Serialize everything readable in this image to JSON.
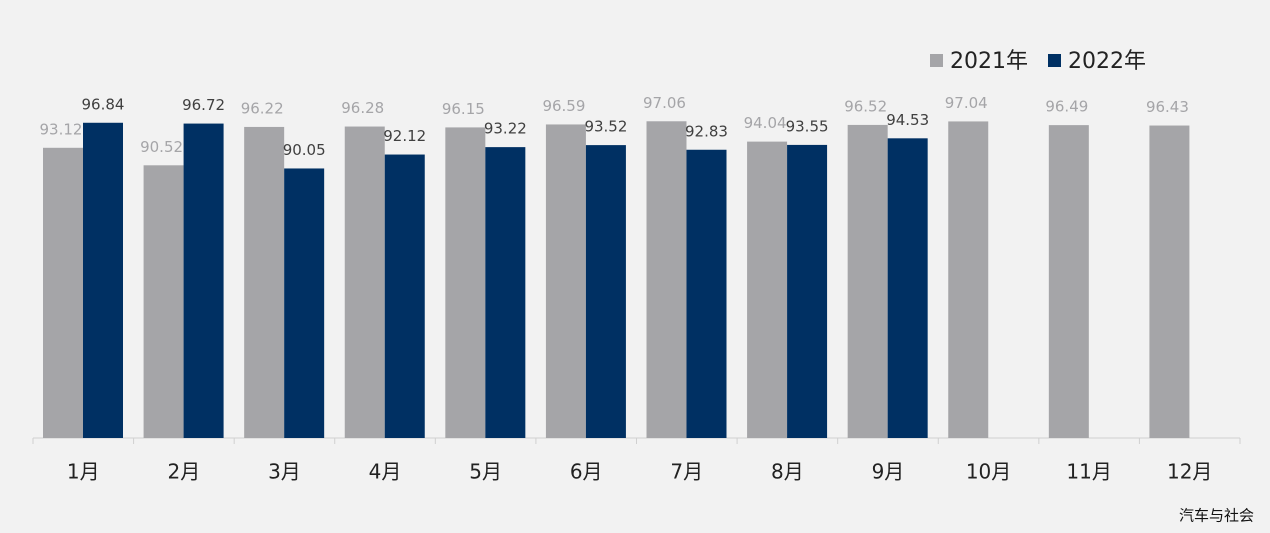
{
  "chart_data": {
    "type": "bar",
    "categories": [
      "1月",
      "2月",
      "3月",
      "4月",
      "5月",
      "6月",
      "7月",
      "8月",
      "9月",
      "10月",
      "11月",
      "12月"
    ],
    "series": [
      {
        "name": "2021年",
        "color": "#a5a5a8",
        "values": [
          93.12,
          90.52,
          96.22,
          96.28,
          96.15,
          96.59,
          97.06,
          94.04,
          96.52,
          97.04,
          96.49,
          96.43
        ]
      },
      {
        "name": "2022年",
        "color": "#003063",
        "values": [
          96.84,
          96.72,
          90.05,
          92.12,
          93.22,
          93.52,
          92.83,
          93.55,
          94.53,
          null,
          null,
          null
        ]
      }
    ],
    "ylim": [
      50,
      100
    ],
    "legend": "top-right",
    "source": "汽车与社会"
  }
}
